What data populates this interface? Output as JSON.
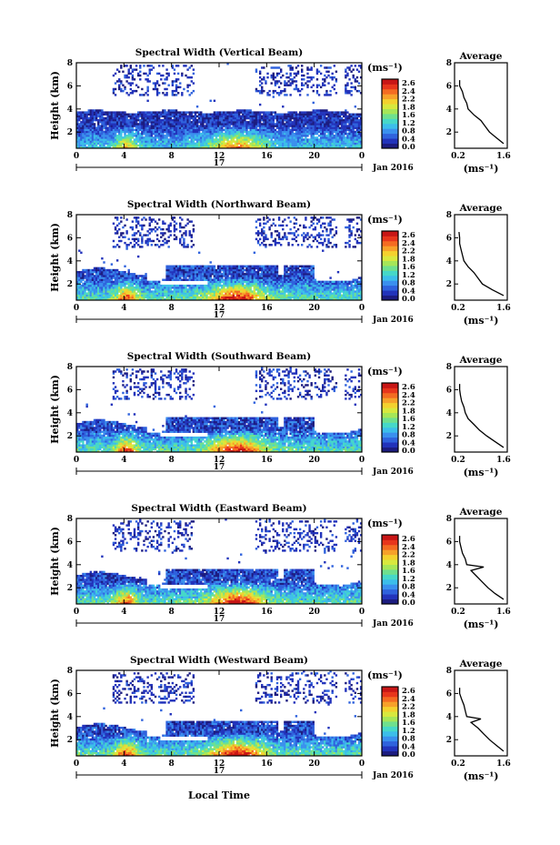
{
  "figure": {
    "xlabel": "Local Time",
    "ylabel": "Height (km)",
    "day_label": "17",
    "date_label": "Jan 2016",
    "colorbar_unit": "(ms⁻¹)",
    "avg_title": "Average",
    "avg_unit": "(ms⁻¹)",
    "xticks": [
      "0",
      "4",
      "8",
      "12",
      "16",
      "20",
      "0"
    ],
    "yticks": [
      "2",
      "4",
      "6",
      "8"
    ],
    "avg_yticks": [
      "2",
      "4",
      "6",
      "8"
    ],
    "avg_xticks": [
      "0.2",
      "1.6"
    ],
    "colorbar_ticks": [
      "2.6",
      "2.4",
      "2.2",
      "1.8",
      "1.6",
      "1.2",
      "0.8",
      "0.4",
      "0.0"
    ],
    "colorbar_colors": [
      "#1c1c80",
      "#2233bb",
      "#2f62dd",
      "#3a90ee",
      "#3cbeea",
      "#46d8c8",
      "#6fe08e",
      "#a6e658",
      "#d8e83e",
      "#f4d12e",
      "#f7a12a",
      "#f46c22",
      "#e8361c",
      "#c81616"
    ]
  },
  "chart_data": [
    {
      "type": "heatmap",
      "title": "Spectral Width (Vertical Beam)",
      "beam": "vertical",
      "x_range_hours": [
        0,
        24
      ],
      "y_range_km": [
        0.6,
        8
      ],
      "color_range_ms": [
        0.0,
        2.6
      ],
      "average_profile": {
        "heights_km": [
          1.0,
          1.5,
          2.0,
          2.5,
          3.0,
          3.5,
          4.0,
          4.5,
          5.0,
          5.5,
          6.0,
          6.5
        ],
        "width_ms": [
          1.6,
          1.35,
          1.1,
          0.95,
          0.8,
          0.55,
          0.35,
          0.3,
          0.2,
          0.15,
          0.05,
          0.05
        ]
      }
    },
    {
      "type": "heatmap",
      "title": "Spectral Width (Northward Beam)",
      "beam": "northward",
      "x_range_hours": [
        0,
        24
      ],
      "y_range_km": [
        0.6,
        8
      ],
      "color_range_ms": [
        0.0,
        2.6
      ],
      "average_profile": {
        "heights_km": [
          1.0,
          1.5,
          2.0,
          2.5,
          3.0,
          3.5,
          4.0,
          4.5,
          5.0,
          5.5,
          6.0,
          6.5
        ],
        "width_ms": [
          1.6,
          1.2,
          0.85,
          0.7,
          0.55,
          0.35,
          0.2,
          0.15,
          0.1,
          0.05,
          0.05,
          0.03
        ]
      }
    },
    {
      "type": "heatmap",
      "title": "Spectral Width (Southward Beam)",
      "beam": "southward",
      "x_range_hours": [
        0,
        24
      ],
      "y_range_km": [
        0.6,
        8
      ],
      "color_range_ms": [
        0.0,
        2.6
      ],
      "average_profile": {
        "heights_km": [
          1.0,
          1.5,
          2.0,
          2.5,
          3.0,
          3.5,
          4.0,
          4.5,
          5.0,
          5.5,
          6.0,
          6.5
        ],
        "width_ms": [
          1.6,
          1.3,
          1.0,
          0.75,
          0.55,
          0.35,
          0.25,
          0.2,
          0.12,
          0.08,
          0.05,
          0.05
        ]
      }
    },
    {
      "type": "heatmap",
      "title": "Spectral Width (Eastward Beam)",
      "beam": "eastward",
      "x_range_hours": [
        0,
        24
      ],
      "y_range_km": [
        0.6,
        8
      ],
      "color_range_ms": [
        0.0,
        2.6
      ],
      "average_profile": {
        "heights_km": [
          1.0,
          1.5,
          2.0,
          2.5,
          3.0,
          3.5,
          3.8,
          4.0,
          4.5,
          5.0,
          5.5,
          6.0,
          6.5
        ],
        "width_ms": [
          1.6,
          1.3,
          1.05,
          0.85,
          0.65,
          0.45,
          0.9,
          0.3,
          0.25,
          0.15,
          0.1,
          0.05,
          0.05
        ]
      }
    },
    {
      "type": "heatmap",
      "title": "Spectral Width (Westward Beam)",
      "beam": "westward",
      "x_range_hours": [
        0,
        24
      ],
      "y_range_km": [
        0.6,
        8
      ],
      "color_range_ms": [
        0.0,
        2.6
      ],
      "average_profile": {
        "heights_km": [
          1.0,
          1.5,
          2.0,
          2.5,
          3.0,
          3.5,
          3.8,
          4.0,
          4.5,
          5.0,
          5.5,
          6.0,
          6.5
        ],
        "width_ms": [
          1.6,
          1.35,
          1.1,
          0.9,
          0.7,
          0.45,
          0.8,
          0.3,
          0.25,
          0.2,
          0.12,
          0.05,
          0.05
        ]
      }
    }
  ]
}
